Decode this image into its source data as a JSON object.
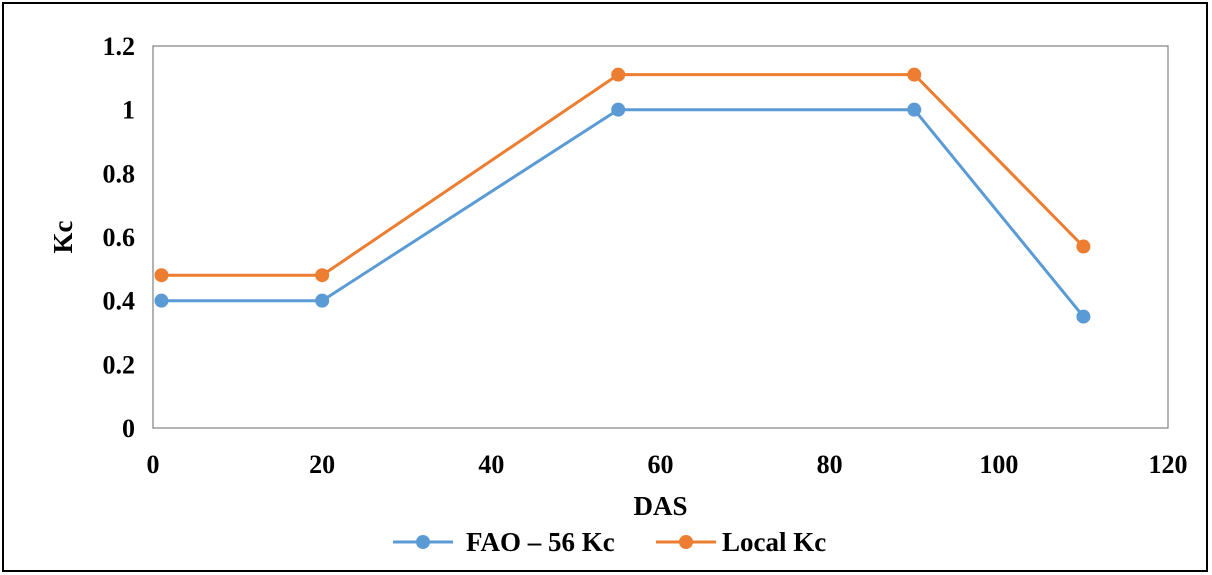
{
  "chart_data": {
    "type": "line",
    "xlabel": "DAS",
    "ylabel": "Kc",
    "xlim": [
      0,
      120
    ],
    "ylim": [
      0,
      1.2
    ],
    "xticks": [
      0,
      20,
      40,
      60,
      80,
      100,
      120
    ],
    "xtick_labels": [
      "0",
      "20",
      "40",
      "60",
      "80",
      "100",
      "120"
    ],
    "yticks": [
      0,
      0.2,
      0.4,
      0.6,
      0.8,
      1,
      1.2
    ],
    "ytick_labels": [
      "0",
      "0.2",
      "0.4",
      "0.6",
      "0.8",
      "1",
      "1.2"
    ],
    "grid": false,
    "legend_position": "bottom",
    "series": [
      {
        "name": "FAO – 56 Kc",
        "color": "#5b9bd5",
        "x": [
          1,
          20,
          55,
          90,
          110
        ],
        "y": [
          0.4,
          0.4,
          1.0,
          1.0,
          0.35
        ]
      },
      {
        "name": "Local Kc",
        "color": "#ed7d31",
        "x": [
          1,
          20,
          55,
          90,
          110
        ],
        "y": [
          0.48,
          0.48,
          1.11,
          1.11,
          0.57
        ]
      }
    ]
  }
}
